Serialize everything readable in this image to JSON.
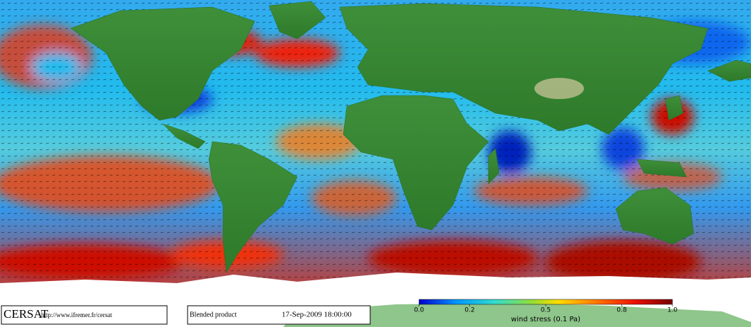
{
  "footer": {
    "logo": "CERSAT",
    "url": "http://www.ifremer.fr/cersat",
    "product": "Blended product",
    "datetime": "17-Sep-2009 18:00:00"
  },
  "colorbar": {
    "label": "wind stress (0.1 Pa)",
    "lim": [
      0,
      1
    ],
    "ticks": [
      {
        "value": 0,
        "label": "0.0"
      },
      0.2,
      0.5,
      0.8,
      {
        "value": 1,
        "label": "1.0"
      }
    ]
  }
}
